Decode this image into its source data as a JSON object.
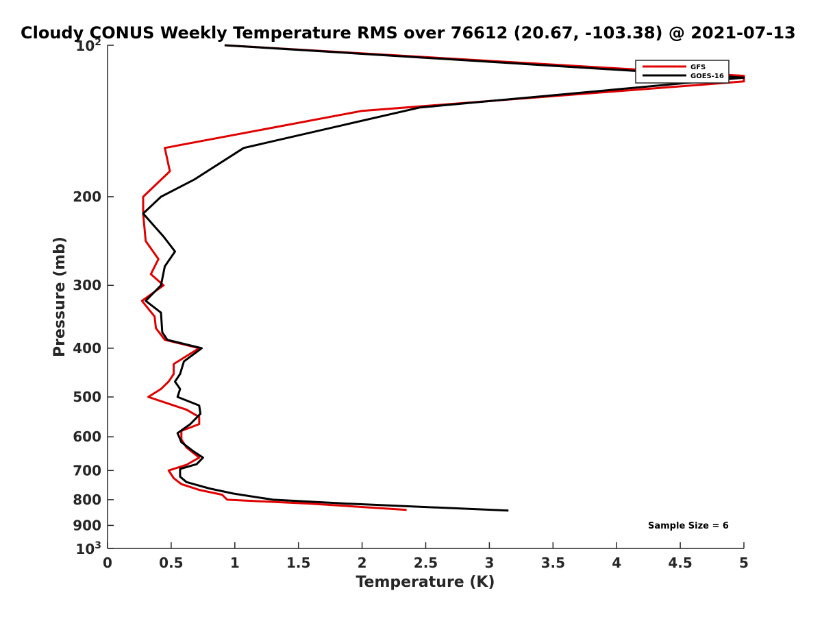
{
  "chart_data": {
    "type": "line",
    "title": "Cloudy CONUS Weekly Temperature RMS over 76612 (20.67, -103.38) @ 2021-07-13",
    "xlabel": "Temperature (K)",
    "ylabel": "Pressure (mb)",
    "xlim": [
      0,
      5
    ],
    "ylim": [
      100,
      1000
    ],
    "yscale": "log",
    "yreversed": true,
    "x_ticks": [
      0,
      0.5,
      1,
      1.5,
      2,
      2.5,
      3,
      3.5,
      4,
      4.5,
      5
    ],
    "x_tick_labels": [
      "0",
      "0.5",
      "1",
      "1.5",
      "2",
      "2.5",
      "3",
      "3.5",
      "4",
      "4.5",
      "5"
    ],
    "y_ticks": [
      200,
      300,
      400,
      500,
      600,
      700,
      800,
      900
    ],
    "y_tick_labels": [
      "200",
      "300",
      "400",
      "500",
      "600",
      "700",
      "800",
      "900"
    ],
    "y_extreme_labels": [
      {
        "value": 100,
        "base": "10",
        "exp": "2"
      },
      {
        "value": 1000,
        "base": "10",
        "exp": "3"
      }
    ],
    "legend_position": "top-right",
    "annotation": "Sample Size = 6",
    "series": [
      {
        "name": "GFS",
        "color": "#e00000",
        "points": [
          [
            0.92,
            100
          ],
          [
            5.0,
            115
          ],
          [
            5.0,
            118
          ],
          [
            2.0,
            135
          ],
          [
            0.45,
            160
          ],
          [
            0.49,
            178
          ],
          [
            0.28,
            200
          ],
          [
            0.28,
            216
          ],
          [
            0.3,
            245
          ],
          [
            0.4,
            266
          ],
          [
            0.34,
            285
          ],
          [
            0.44,
            300
          ],
          [
            0.27,
            322
          ],
          [
            0.37,
            346
          ],
          [
            0.38,
            365
          ],
          [
            0.45,
            385
          ],
          [
            0.72,
            400
          ],
          [
            0.52,
            430
          ],
          [
            0.52,
            450
          ],
          [
            0.48,
            466
          ],
          [
            0.42,
            482
          ],
          [
            0.32,
            500
          ],
          [
            0.62,
            530
          ],
          [
            0.72,
            548
          ],
          [
            0.72,
            566
          ],
          [
            0.58,
            584
          ],
          [
            0.58,
            607
          ],
          [
            0.62,
            630
          ],
          [
            0.72,
            660
          ],
          [
            0.62,
            682
          ],
          [
            0.48,
            700
          ],
          [
            0.52,
            725
          ],
          [
            0.58,
            745
          ],
          [
            0.72,
            765
          ],
          [
            0.9,
            782
          ],
          [
            0.94,
            800
          ],
          [
            1.6,
            815
          ],
          [
            2.35,
            838
          ]
        ]
      },
      {
        "name": "GOES-16",
        "color": "#000000",
        "points": [
          [
            0.92,
            100
          ],
          [
            5.0,
            116
          ],
          [
            2.45,
            133
          ],
          [
            1.07,
            160
          ],
          [
            0.68,
            185
          ],
          [
            0.42,
            200
          ],
          [
            0.28,
            216
          ],
          [
            0.44,
            240
          ],
          [
            0.53,
            257
          ],
          [
            0.45,
            275
          ],
          [
            0.42,
            300
          ],
          [
            0.3,
            322
          ],
          [
            0.42,
            340
          ],
          [
            0.43,
            372
          ],
          [
            0.47,
            385
          ],
          [
            0.74,
            400
          ],
          [
            0.6,
            425
          ],
          [
            0.57,
            450
          ],
          [
            0.53,
            466
          ],
          [
            0.57,
            482
          ],
          [
            0.55,
            500
          ],
          [
            0.72,
            520
          ],
          [
            0.73,
            540
          ],
          [
            0.65,
            566
          ],
          [
            0.55,
            590
          ],
          [
            0.58,
            615
          ],
          [
            0.67,
            640
          ],
          [
            0.75,
            660
          ],
          [
            0.7,
            680
          ],
          [
            0.57,
            695
          ],
          [
            0.57,
            720
          ],
          [
            0.62,
            738
          ],
          [
            0.8,
            760
          ],
          [
            0.99,
            778
          ],
          [
            1.3,
            800
          ],
          [
            1.9,
            815
          ],
          [
            3.15,
            841
          ]
        ]
      }
    ]
  }
}
